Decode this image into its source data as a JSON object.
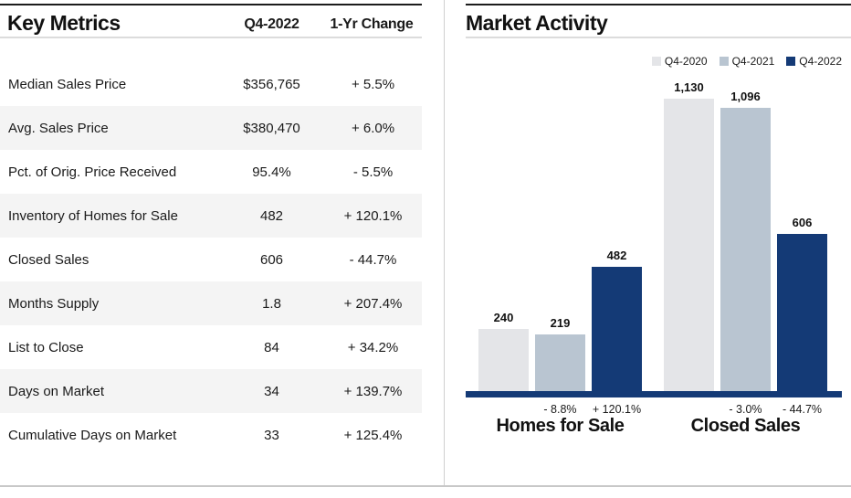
{
  "chart_data": [
    {
      "type": "bar",
      "title": "Market Activity",
      "categories": [
        "Homes for Sale",
        "Closed Sales"
      ],
      "series": [
        {
          "name": "Q4-2020",
          "color": "#e4e5e8",
          "values": [
            240,
            1130
          ],
          "value_labels": [
            "240",
            "1,130"
          ],
          "pct_change": [
            null,
            null
          ]
        },
        {
          "name": "Q4-2021",
          "color": "#b9c5d1",
          "values": [
            219,
            1096
          ],
          "value_labels": [
            "219",
            "1,096"
          ],
          "pct_change": [
            "- 8.8%",
            "- 3.0%"
          ]
        },
        {
          "name": "Q4-2022",
          "color": "#143a76",
          "values": [
            482,
            606
          ],
          "value_labels": [
            "482",
            "606"
          ],
          "pct_change": [
            "+ 120.1%",
            "- 44.7%"
          ]
        }
      ],
      "ylim": [
        0,
        1130
      ],
      "grid": false,
      "legend_position": "top-right",
      "axis_color": "#143a76"
    },
    {
      "type": "table",
      "title": "Key Metrics",
      "columns": [
        "Key Metrics",
        "Q4-2022",
        "1-Yr Change"
      ],
      "rows": [
        [
          "Median Sales Price",
          "$356,765",
          "+ 5.5%"
        ],
        [
          "Avg. Sales Price",
          "$380,470",
          "+ 6.0%"
        ],
        [
          "Pct. of Orig. Price Received",
          "95.4%",
          "- 5.5%"
        ],
        [
          "Inventory of Homes for Sale",
          "482",
          "+ 120.1%"
        ],
        [
          "Closed Sales",
          "606",
          "- 44.7%"
        ],
        [
          "Months Supply",
          "1.8",
          "+ 207.4%"
        ],
        [
          "List to Close",
          "84",
          "+ 34.2%"
        ],
        [
          "Days on Market",
          "34",
          "+ 139.7%"
        ],
        [
          "Cumulative Days on Market",
          "33",
          "+ 125.4%"
        ]
      ]
    }
  ],
  "colors": {
    "accent_navy": "#143a76",
    "bar_light_gray": "#e4e5e8",
    "bar_blue_gray": "#b9c5d1",
    "row_stripe": "#f4f4f4",
    "top_rule": "#1c1c1c"
  }
}
